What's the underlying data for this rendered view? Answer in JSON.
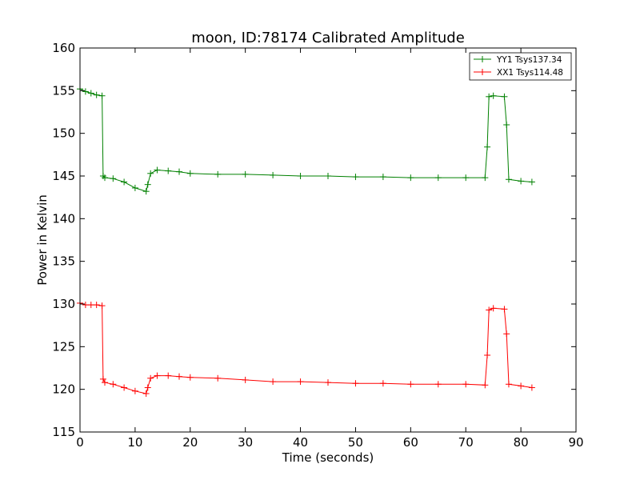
{
  "chart_data": {
    "type": "line",
    "title": "moon, ID:78174 Calibrated Amplitude",
    "xlabel": "Time (seconds)",
    "ylabel": "Power in Kelvin",
    "xlim": [
      0,
      90
    ],
    "ylim": [
      115,
      160
    ],
    "xticks": [
      "0",
      "10",
      "20",
      "30",
      "40",
      "50",
      "60",
      "70",
      "80",
      "90"
    ],
    "yticks": [
      "115",
      "120",
      "125",
      "130",
      "135",
      "140",
      "145",
      "150",
      "155",
      "160"
    ],
    "grid": false,
    "legend": "top-right",
    "series": [
      {
        "name": "YY1 Tsys137.34",
        "color": "#008000",
        "marker": "+",
        "x": [
          0,
          1,
          2,
          3,
          4,
          4.2,
          4.5,
          6,
          8,
          10,
          12,
          12.3,
          12.8,
          14,
          16,
          18,
          20,
          25,
          30,
          35,
          40,
          45,
          50,
          55,
          60,
          65,
          70,
          73.5,
          73.9,
          74.2,
          75,
          77,
          77.4,
          77.8,
          80,
          82
        ],
        "y": [
          155.2,
          154.9,
          154.7,
          154.5,
          154.4,
          145.0,
          144.8,
          144.7,
          144.3,
          143.6,
          143.2,
          144.0,
          145.3,
          145.7,
          145.6,
          145.5,
          145.3,
          145.2,
          145.2,
          145.1,
          145.0,
          145.0,
          144.9,
          144.9,
          144.8,
          144.8,
          144.8,
          144.8,
          148.4,
          154.3,
          154.4,
          154.3,
          151.0,
          144.6,
          144.4,
          144.3
        ]
      },
      {
        "name": "XX1 Tsys114.48",
        "color": "#ff0000",
        "marker": "+",
        "x": [
          0,
          1,
          2,
          3,
          4,
          4.2,
          4.5,
          6,
          8,
          10,
          12,
          12.3,
          12.8,
          14,
          16,
          18,
          20,
          25,
          30,
          35,
          40,
          45,
          50,
          55,
          60,
          65,
          70,
          73.5,
          73.9,
          74.2,
          75,
          77,
          77.4,
          77.8,
          80,
          82
        ],
        "y": [
          130.1,
          129.9,
          129.9,
          129.9,
          129.8,
          121.2,
          120.8,
          120.6,
          120.2,
          119.8,
          119.5,
          120.2,
          121.3,
          121.6,
          121.6,
          121.5,
          121.4,
          121.3,
          121.1,
          120.9,
          120.9,
          120.8,
          120.7,
          120.7,
          120.6,
          120.6,
          120.6,
          120.5,
          124.0,
          129.3,
          129.5,
          129.4,
          126.5,
          120.6,
          120.4,
          120.2
        ]
      }
    ]
  }
}
